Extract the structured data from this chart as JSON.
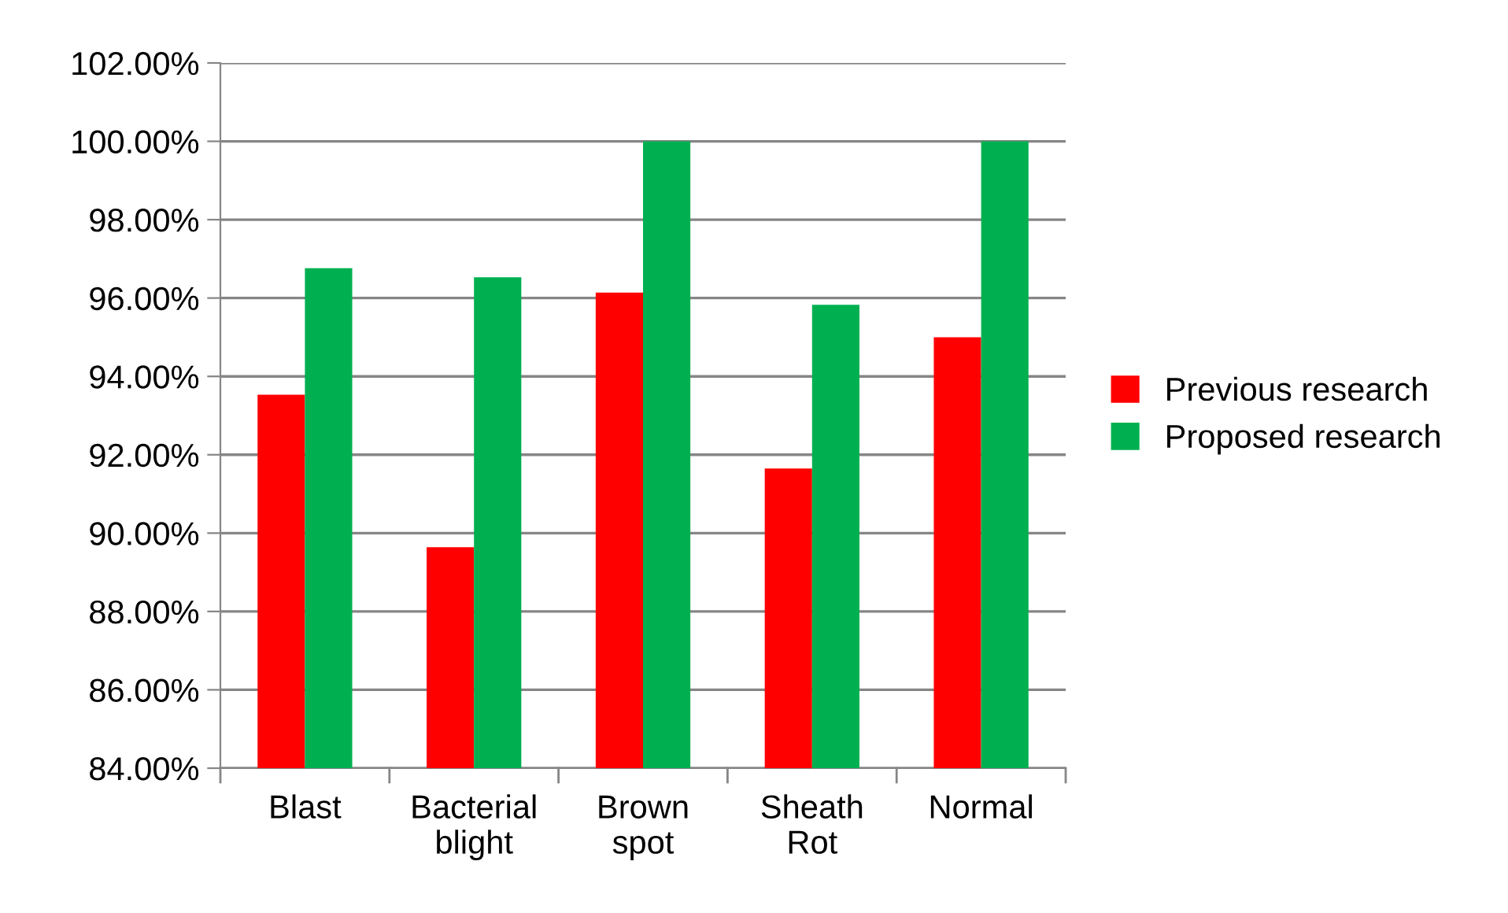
{
  "chart_data": {
    "type": "bar",
    "categories": [
      "Blast",
      "Bacterial\nblight",
      "Brown\nspot",
      "Sheath\nRot",
      "Normal"
    ],
    "series": [
      {
        "name": "Previous research",
        "color": "#ff0000",
        "values": [
          93.53,
          89.64,
          96.14,
          91.65,
          95.0
        ]
      },
      {
        "name": "Proposed research",
        "color": "#00b050",
        "values": [
          96.76,
          96.53,
          100.0,
          95.83,
          100.0
        ]
      }
    ],
    "ylim": [
      84,
      102
    ],
    "yticks": [
      {
        "value": 84,
        "label": "84.00%"
      },
      {
        "value": 86,
        "label": "86.00%"
      },
      {
        "value": 88,
        "label": "88.00%"
      },
      {
        "value": 90,
        "label": "90.00%"
      },
      {
        "value": 92,
        "label": "92.00%"
      },
      {
        "value": 94,
        "label": "94.00%"
      },
      {
        "value": 96,
        "label": "96.00%"
      },
      {
        "value": 98,
        "label": "98.00%"
      },
      {
        "value": 100,
        "label": "100.00%"
      },
      {
        "value": 102,
        "label": "102.00%"
      }
    ],
    "grid": "y",
    "legend": "right"
  }
}
